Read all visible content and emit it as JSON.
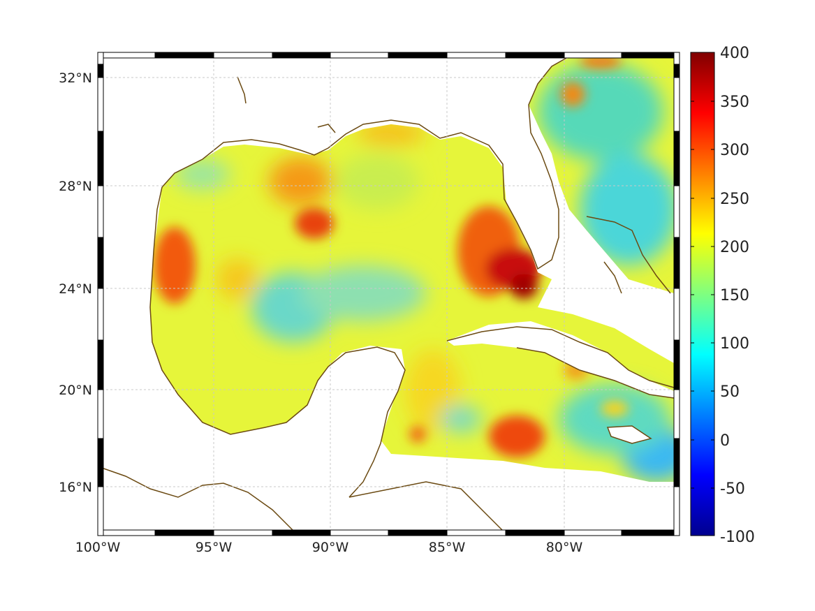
{
  "map": {
    "x_ticks": [
      "100°W",
      "95°W",
      "90°W",
      "85°W",
      "80°W"
    ],
    "y_ticks": [
      "32°N",
      "28°N",
      "24°N",
      "20°N",
      "16°N"
    ],
    "colorbar_ticks": [
      "400",
      "350",
      "300",
      "250",
      "200",
      "150",
      "100",
      "50",
      "0",
      "-50",
      "-100"
    ],
    "colorbar_range": [
      -100,
      400
    ],
    "colormap": "jet",
    "coast_color": "#6b4a12",
    "grid_color": "#c8c8c8"
  },
  "chart_data": {
    "type": "heatmap",
    "colorbar": {
      "min": -100,
      "max": 400,
      "ticks": [
        400,
        350,
        300,
        250,
        200,
        150,
        100,
        50,
        0,
        -50,
        -100
      ]
    },
    "x_ticks": [
      "100°W",
      "95°W",
      "90°W",
      "85°W",
      "80°W"
    ],
    "y_ticks": [
      "32°N",
      "28°N",
      "24°N",
      "20°N",
      "16°N"
    ],
    "grid": true
  }
}
